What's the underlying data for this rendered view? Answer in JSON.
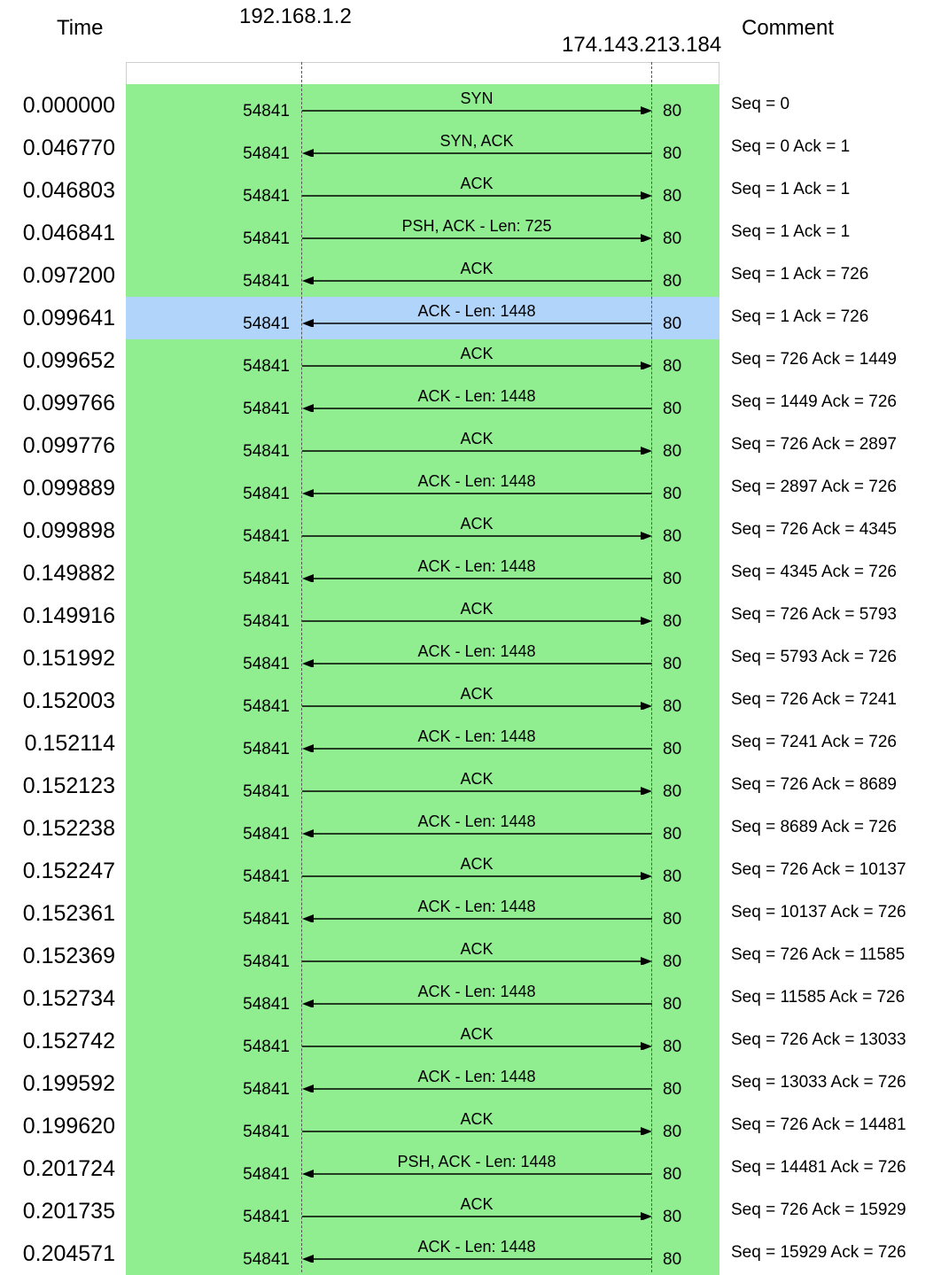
{
  "header": {
    "time_label": "Time",
    "left_host": "192.168.1.2",
    "right_host": "174.143.213.184",
    "comment_label": "Comment"
  },
  "colors": {
    "row_normal": "#90ee90",
    "row_selected": "#b0d4fa",
    "line": "#000000"
  },
  "rows": [
    {
      "time": "0.000000",
      "src_port": "54841",
      "dst_port": "80",
      "label": "SYN",
      "direction": "right",
      "comment": "Seq = 0"
    },
    {
      "time": "0.046770",
      "src_port": "54841",
      "dst_port": "80",
      "label": "SYN, ACK",
      "direction": "left",
      "comment": "Seq = 0 Ack = 1"
    },
    {
      "time": "0.046803",
      "src_port": "54841",
      "dst_port": "80",
      "label": "ACK",
      "direction": "right",
      "comment": "Seq = 1 Ack = 1"
    },
    {
      "time": "0.046841",
      "src_port": "54841",
      "dst_port": "80",
      "label": "PSH, ACK - Len: 725",
      "direction": "right",
      "comment": "Seq = 1 Ack = 1"
    },
    {
      "time": "0.097200",
      "src_port": "54841",
      "dst_port": "80",
      "label": "ACK",
      "direction": "left",
      "comment": "Seq = 1 Ack = 726"
    },
    {
      "time": "0.099641",
      "src_port": "54841",
      "dst_port": "80",
      "label": "ACK - Len: 1448",
      "direction": "left",
      "comment": "Seq = 1 Ack = 726",
      "selected": true
    },
    {
      "time": "0.099652",
      "src_port": "54841",
      "dst_port": "80",
      "label": "ACK",
      "direction": "right",
      "comment": "Seq = 726 Ack = 1449"
    },
    {
      "time": "0.099766",
      "src_port": "54841",
      "dst_port": "80",
      "label": "ACK - Len: 1448",
      "direction": "left",
      "comment": "Seq = 1449 Ack = 726"
    },
    {
      "time": "0.099776",
      "src_port": "54841",
      "dst_port": "80",
      "label": "ACK",
      "direction": "right",
      "comment": "Seq = 726 Ack = 2897"
    },
    {
      "time": "0.099889",
      "src_port": "54841",
      "dst_port": "80",
      "label": "ACK - Len: 1448",
      "direction": "left",
      "comment": "Seq = 2897 Ack = 726"
    },
    {
      "time": "0.099898",
      "src_port": "54841",
      "dst_port": "80",
      "label": "ACK",
      "direction": "right",
      "comment": "Seq = 726 Ack = 4345"
    },
    {
      "time": "0.149882",
      "src_port": "54841",
      "dst_port": "80",
      "label": "ACK - Len: 1448",
      "direction": "left",
      "comment": "Seq = 4345 Ack = 726"
    },
    {
      "time": "0.149916",
      "src_port": "54841",
      "dst_port": "80",
      "label": "ACK",
      "direction": "right",
      "comment": "Seq = 726 Ack = 5793"
    },
    {
      "time": "0.151992",
      "src_port": "54841",
      "dst_port": "80",
      "label": "ACK - Len: 1448",
      "direction": "left",
      "comment": "Seq = 5793 Ack = 726"
    },
    {
      "time": "0.152003",
      "src_port": "54841",
      "dst_port": "80",
      "label": "ACK",
      "direction": "right",
      "comment": "Seq = 726 Ack = 7241"
    },
    {
      "time": "0.152114",
      "src_port": "54841",
      "dst_port": "80",
      "label": "ACK - Len: 1448",
      "direction": "left",
      "comment": "Seq = 7241 Ack = 726"
    },
    {
      "time": "0.152123",
      "src_port": "54841",
      "dst_port": "80",
      "label": "ACK",
      "direction": "right",
      "comment": "Seq = 726 Ack = 8689"
    },
    {
      "time": "0.152238",
      "src_port": "54841",
      "dst_port": "80",
      "label": "ACK - Len: 1448",
      "direction": "left",
      "comment": "Seq = 8689 Ack = 726"
    },
    {
      "time": "0.152247",
      "src_port": "54841",
      "dst_port": "80",
      "label": "ACK",
      "direction": "right",
      "comment": "Seq = 726 Ack = 10137"
    },
    {
      "time": "0.152361",
      "src_port": "54841",
      "dst_port": "80",
      "label": "ACK - Len: 1448",
      "direction": "left",
      "comment": "Seq = 10137 Ack = 726"
    },
    {
      "time": "0.152369",
      "src_port": "54841",
      "dst_port": "80",
      "label": "ACK",
      "direction": "right",
      "comment": "Seq = 726 Ack = 11585"
    },
    {
      "time": "0.152734",
      "src_port": "54841",
      "dst_port": "80",
      "label": "ACK - Len: 1448",
      "direction": "left",
      "comment": "Seq = 11585 Ack = 726"
    },
    {
      "time": "0.152742",
      "src_port": "54841",
      "dst_port": "80",
      "label": "ACK",
      "direction": "right",
      "comment": "Seq = 726 Ack = 13033"
    },
    {
      "time": "0.199592",
      "src_port": "54841",
      "dst_port": "80",
      "label": "ACK - Len: 1448",
      "direction": "left",
      "comment": "Seq = 13033 Ack = 726"
    },
    {
      "time": "0.199620",
      "src_port": "54841",
      "dst_port": "80",
      "label": "ACK",
      "direction": "right",
      "comment": "Seq = 726 Ack = 14481"
    },
    {
      "time": "0.201724",
      "src_port": "54841",
      "dst_port": "80",
      "label": "PSH, ACK - Len: 1448",
      "direction": "left",
      "comment": "Seq = 14481 Ack = 726"
    },
    {
      "time": "0.201735",
      "src_port": "54841",
      "dst_port": "80",
      "label": "ACK",
      "direction": "right",
      "comment": "Seq = 726 Ack = 15929"
    },
    {
      "time": "0.204571",
      "src_port": "54841",
      "dst_port": "80",
      "label": "ACK - Len: 1448",
      "direction": "left",
      "comment": "Seq = 15929 Ack = 726"
    }
  ]
}
